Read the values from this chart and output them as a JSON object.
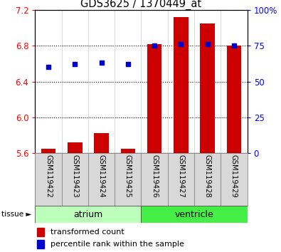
{
  "title": "GDS3625 / 1370449_at",
  "samples": [
    "GSM119422",
    "GSM119423",
    "GSM119424",
    "GSM119425",
    "GSM119426",
    "GSM119427",
    "GSM119428",
    "GSM119429"
  ],
  "transformed_count": [
    5.65,
    5.72,
    5.82,
    5.65,
    6.82,
    7.12,
    7.05,
    6.8
  ],
  "percentile_rank": [
    60,
    62,
    63,
    62,
    75,
    76,
    76,
    75
  ],
  "ylim_left": [
    5.6,
    7.2
  ],
  "ylim_right": [
    0,
    100
  ],
  "yticks_left": [
    5.6,
    6.0,
    6.4,
    6.8,
    7.2
  ],
  "yticks_right": [
    0,
    25,
    50,
    75,
    100
  ],
  "ytick_labels_right": [
    "0",
    "25",
    "50",
    "75",
    "100%"
  ],
  "bar_color": "#cc0000",
  "dot_color": "#0000cc",
  "tissue_groups": [
    {
      "label": "atrium",
      "start": 0,
      "end": 3,
      "color": "#bbffbb"
    },
    {
      "label": "ventricle",
      "start": 4,
      "end": 7,
      "color": "#44ee44"
    }
  ],
  "tissue_label": "tissue",
  "legend_bar_label": "transformed count",
  "legend_dot_label": "percentile rank within the sample",
  "bar_width": 0.55,
  "sample_box_color": "#d8d8d8",
  "plot_bg_color": "#ffffff"
}
